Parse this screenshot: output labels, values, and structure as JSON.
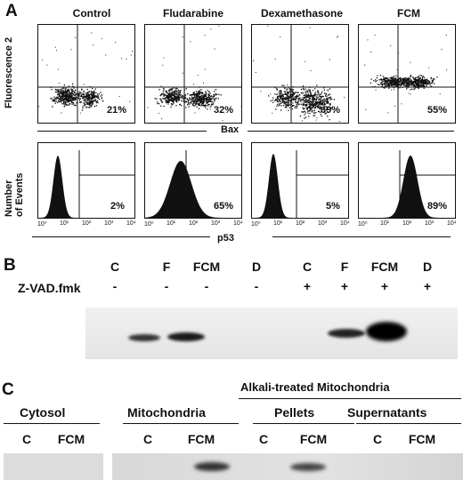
{
  "panelA": {
    "letter": "A",
    "columns": [
      "Control",
      "Fludarabine",
      "Dexamethasone",
      "FCM"
    ],
    "scatter_ylabel": "Fluorescence 2",
    "scatter_xlabel": "Bax",
    "scatter_percent": [
      "21%",
      "32%",
      "69%",
      "55%"
    ],
    "hist_ylabel_line1": "Number",
    "hist_ylabel_line2": "of Events",
    "hist_xlabel": "p53",
    "hist_percent": [
      "2%",
      "65%",
      "5%",
      "89%"
    ],
    "ticks": [
      "10⁰",
      "10¹",
      "10²",
      "10³",
      "10⁴"
    ]
  },
  "panelB": {
    "letter": "B",
    "lanes": [
      "C",
      "F",
      "FCM",
      "D",
      "C",
      "F",
      "FCM",
      "D"
    ],
    "treatment_label": "Z-VAD.fmk",
    "treatment": [
      "-",
      "-",
      "-",
      "-",
      "+",
      "+",
      "+",
      "+"
    ]
  },
  "panelC": {
    "letter": "C",
    "group_alkali": "Alkali-treated Mitochondria",
    "group_cytosol": "Cytosol",
    "group_mito": "Mitochondria",
    "group_pellets": "Pellets",
    "group_super": "Supernatants",
    "lanes": [
      "C",
      "FCM",
      "C",
      "FCM",
      "C",
      "FCM",
      "C",
      "FCM"
    ]
  }
}
